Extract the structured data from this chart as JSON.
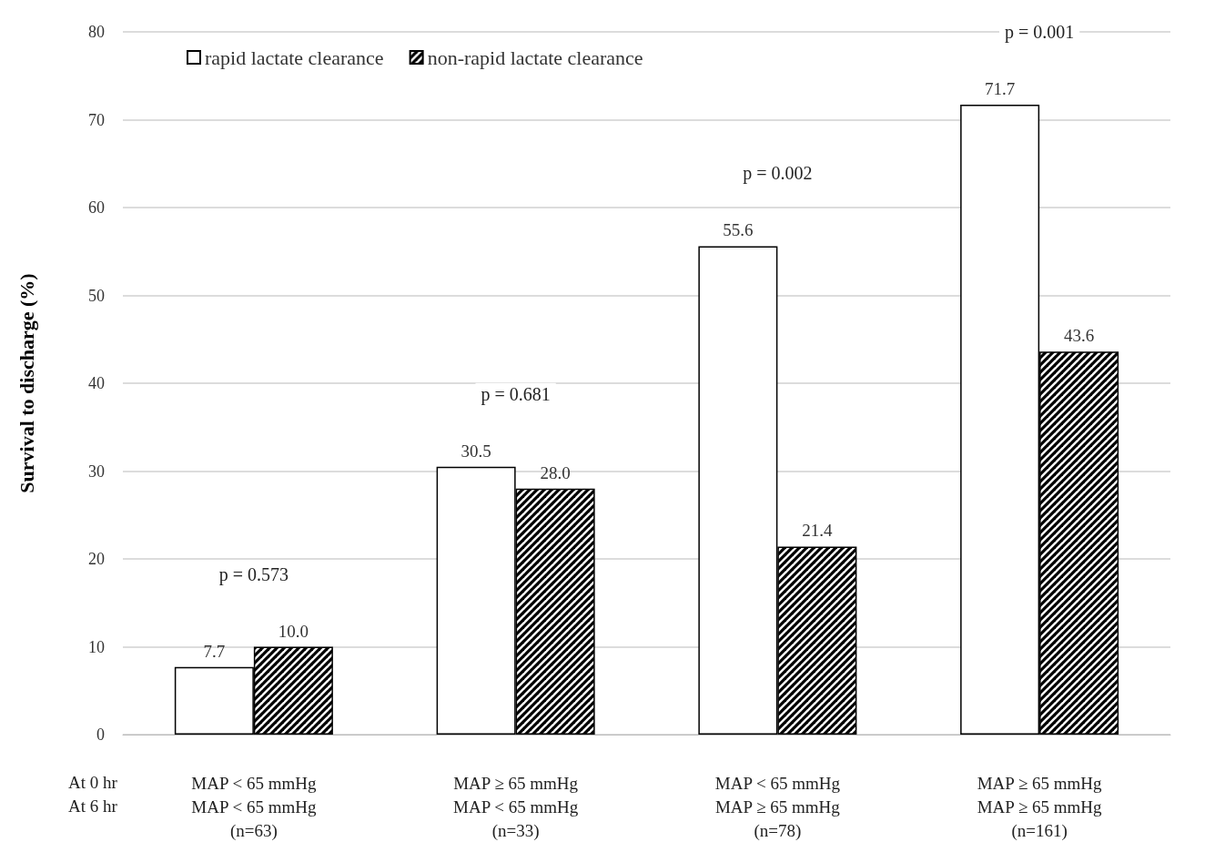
{
  "chart_data": {
    "type": "bar",
    "ylabel": "Survival to discharge (%)",
    "categories": [
      "MAP < 65 mmHg\nMAP < 65 mmHg\n(n=63)",
      "MAP ≥ 65 mmHg\nMAP < 65 mmHg\n(n=33)",
      "MAP < 65 mmHg\nMAP ≥ 65 mmHg\n(n=78)",
      "MAP ≥ 65 mmHg\nMAP ≥ 65 mmHg\n(n=161)"
    ],
    "series": [
      {
        "name": "rapid lactate clearance",
        "color": "#ffffff",
        "values": [
          7.7,
          30.5,
          55.6,
          71.7
        ],
        "value_labels": [
          "7.7",
          "30.5",
          "55.6",
          "71.7"
        ]
      },
      {
        "name": "non-rapid lactate clearance",
        "color": "#000000",
        "values": [
          10.0,
          28.0,
          21.4,
          43.6
        ],
        "value_labels": [
          "10.0",
          "28.0",
          "21.4",
          "43.6"
        ]
      }
    ],
    "ylim": [
      0,
      80
    ],
    "yticks": [
      0,
      10,
      20,
      30,
      40,
      50,
      60,
      70,
      80
    ],
    "grid": "y",
    "legend": "top left",
    "annotations": [
      "p = 0.573",
      "p = 0.681",
      "p = 0.002",
      "p = 0.001",
      "At 0 hr\nAt 6 hr"
    ]
  }
}
